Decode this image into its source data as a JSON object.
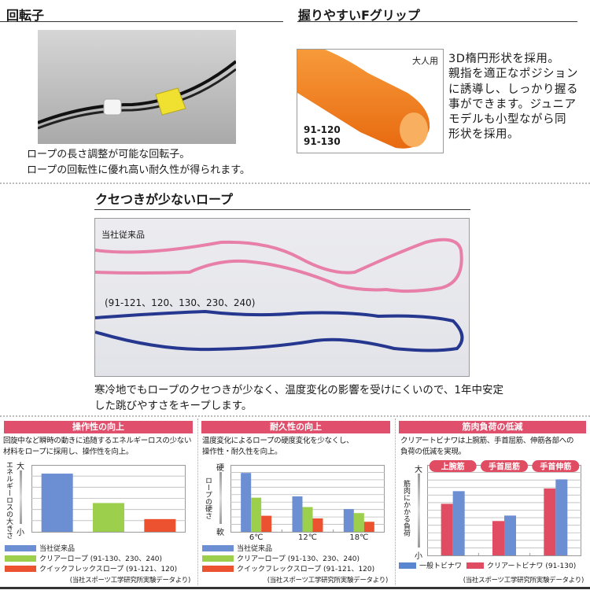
{
  "swivel": {
    "title": "回転子",
    "lines": [
      "ロープの長さ調整が可能な回転子。",
      "ロープの回転性に優れ高い耐久性が得られます。"
    ]
  },
  "grip": {
    "title": "握りやすいFグリップ",
    "badge": "大人用",
    "models": [
      "91-120",
      "91-130"
    ],
    "lines": [
      "3D楕円形状を採用。",
      "親指を適正なポジション",
      "に誘導し、しっかり握る",
      "事ができます。ジュニア",
      "モデルも小型ながら同",
      "形状を採用。"
    ]
  },
  "rope": {
    "title": "クセつきが少ないロープ",
    "label_old": "当社従来品",
    "label_new": "(91-121、120、130、230、240)",
    "colors": {
      "old": "#e77fa8",
      "new": "#25378f"
    },
    "lines": [
      "寒冷地でもロープのクセつきが少なく、温度変化の影響を受けにくいので、1年中安定",
      "した跳びやすさをキープします。"
    ]
  },
  "colors": {
    "blue": "#6c8ed2",
    "green": "#9ccf4c",
    "red": "#ec5230",
    "pink": "#e04c62",
    "header": "#e0506c"
  },
  "chart_data": [
    {
      "type": "bar",
      "title": "操作性の向上",
      "description": [
        "回旋中など瞬時の動きに追随するエネルギーロスの少ない",
        "材料をロープに採用し、操作性を向上。"
      ],
      "ylabel": "エネルギーロスの大きさ",
      "y_top": "大",
      "y_bottom": "小",
      "categories": [
        ""
      ],
      "series": [
        {
          "name": "当社従来品",
          "values": [
            0.87
          ]
        },
        {
          "name": "クリアーロープ (91-130、230、240)",
          "values": [
            0.43
          ]
        },
        {
          "name": "クイックフレックスロープ (91-121、120)",
          "values": [
            0.19
          ]
        }
      ],
      "ylim": [
        0,
        1
      ],
      "grid": true,
      "source": "(当社スポーツ工学研究所実験データより)"
    },
    {
      "type": "bar",
      "title": "耐久性の向上",
      "description": [
        "温度変化によるロープの硬度変化を少なくし、",
        "操作性・耐久性を向上。"
      ],
      "ylabel": "ロープの硬さ",
      "y_top": "硬",
      "y_bottom": "軟",
      "categories": [
        "6℃",
        "12℃",
        "18℃"
      ],
      "series": [
        {
          "name": "当社従来品",
          "values": [
            0.88,
            0.53,
            0.34
          ]
        },
        {
          "name": "クリアーロープ (91-130、230、240)",
          "values": [
            0.51,
            0.37,
            0.28
          ]
        },
        {
          "name": "クイックフレックスロープ (91-121、120)",
          "values": [
            0.24,
            0.2,
            0.15
          ]
        }
      ],
      "ylim": [
        0,
        1
      ],
      "grid": true,
      "source": "(当社スポーツ工学研究所実験データより)"
    },
    {
      "type": "bar",
      "title": "筋肉負荷の低減",
      "description": [
        "クリアートビナワは上腕筋、手首屈筋、伸筋各部への",
        "負荷の低減を実現。"
      ],
      "ylabel": "筋肉にかかる負荷",
      "y_top": "大",
      "y_bottom": "小",
      "categories": [
        "上腕筋",
        "手首屈筋",
        "手首伸筋"
      ],
      "series": [
        {
          "name": "クリアートビナワ (91-130)",
          "values": [
            0.57,
            0.38,
            0.74
          ]
        },
        {
          "name": "一般トビナワ",
          "values": [
            0.71,
            0.44,
            0.84
          ]
        }
      ],
      "ylim": [
        0,
        1
      ],
      "grid": true,
      "source": "(当社スポーツ工学研究所実験データより)"
    }
  ]
}
